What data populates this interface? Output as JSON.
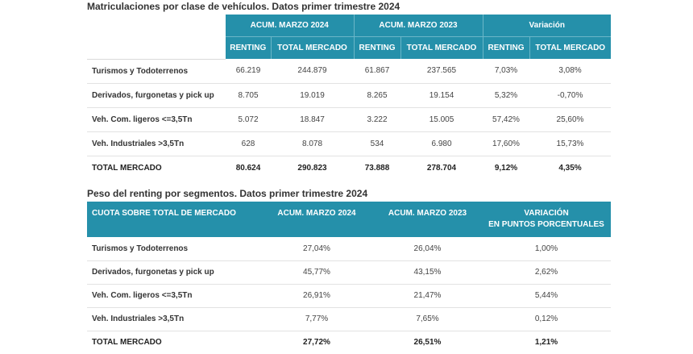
{
  "table1": {
    "title": "Matriculaciones por clase de vehículos. Datos primer trimestre 2024",
    "group_headers": [
      "ACUM. MARZO 2024",
      "ACUM. MARZO 2023",
      "Variación"
    ],
    "sub_headers": [
      "RENTING",
      "TOTAL MERCADO",
      "RENTING",
      "TOTAL MERCADO",
      "RENTING",
      "TOTAL MERCADO"
    ],
    "rows": [
      {
        "label": "Turismos y Todoterrenos",
        "values": [
          "66.219",
          "244.879",
          "61.867",
          "237.565",
          "7,03%",
          "3,08%"
        ]
      },
      {
        "label": "Derivados, furgonetas y pick up",
        "values": [
          "8.705",
          "19.019",
          "8.265",
          "19.154",
          "5,32%",
          "-0,70%"
        ]
      },
      {
        "label": "Veh. Com. ligeros <=3,5Tn",
        "values": [
          "5.072",
          "18.847",
          "3.222",
          "15.005",
          "57,42%",
          "25,60%"
        ]
      },
      {
        "label": "Veh. Industriales >3,5Tn",
        "values": [
          "628",
          "8.078",
          "534",
          "6.980",
          "17,60%",
          "15,73%"
        ]
      },
      {
        "label": "TOTAL MERCADO",
        "values": [
          "80.624",
          "290.823",
          "73.888",
          "278.704",
          "9,12%",
          "4,35%"
        ]
      }
    ]
  },
  "table2": {
    "title": "Peso del renting por segmentos. Datos primer trimestre 2024",
    "headers": [
      "CUOTA SOBRE TOTAL DE MERCADO",
      "ACUM. MARZO 2024",
      "ACUM. MARZO 2023"
    ],
    "variation_header_line1": "VARIACIÓN",
    "variation_header_line2": "EN PUNTOS PORCENTUALES",
    "rows": [
      {
        "label": "Turismos y Todoterrenos",
        "values": [
          "27,04%",
          "26,04%",
          "1,00%"
        ]
      },
      {
        "label": "Derivados, furgonetas y pick up",
        "values": [
          "45,77%",
          "43,15%",
          "2,62%"
        ]
      },
      {
        "label": "Veh. Com. ligeros <=3,5Tn",
        "values": [
          "26,91%",
          "21,47%",
          "5,44%"
        ]
      },
      {
        "label": "Veh. Industriales >3,5Tn",
        "values": [
          "7,77%",
          "7,65%",
          "0,12%"
        ]
      },
      {
        "label": "TOTAL MERCADO",
        "values": [
          "27,72%",
          "26,51%",
          "1,21%"
        ]
      }
    ]
  }
}
